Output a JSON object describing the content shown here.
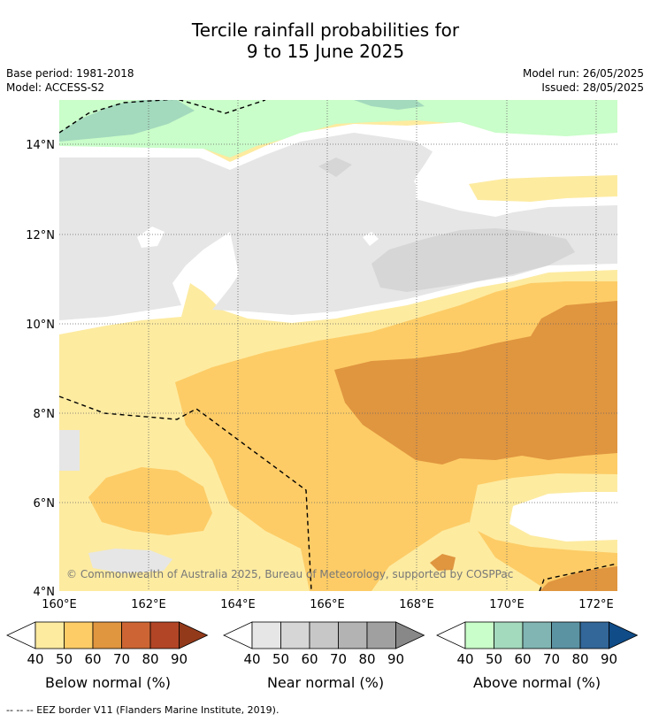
{
  "title": {
    "line1": "Tercile rainfall probabilities for",
    "line2": "9 to 15 June 2025"
  },
  "meta": {
    "base_period": "Base period: 1981-2018",
    "model": "Model: ACCESS-S2",
    "model_run": "Model run: 26/05/2025",
    "issued": "Issued: 28/05/2025"
  },
  "map": {
    "lon_labels": [
      "160°E",
      "162°E",
      "164°E",
      "166°E",
      "168°E",
      "170°E",
      "172°E"
    ],
    "lat_labels": [
      "14°N",
      "12°N",
      "10°N",
      "8°N",
      "6°N",
      "4°N"
    ],
    "copyright": "© Commonwealth of Australia 2025, Bureau of Meteorology, supported by COSPPac"
  },
  "legends": [
    {
      "title": "Below normal (%)",
      "ticks": [
        "40",
        "50",
        "60",
        "70",
        "80",
        "90"
      ],
      "colors": [
        "#fdeba0",
        "#fdcc66",
        "#e0953f",
        "#cc6533",
        "#b24526",
        "#933a1b"
      ]
    },
    {
      "title": "Near normal (%)",
      "ticks": [
        "40",
        "50",
        "60",
        "70",
        "80",
        "90"
      ],
      "colors": [
        "#e6e6e6",
        "#d6d6d6",
        "#c7c7c7",
        "#b3b3b3",
        "#a0a0a0",
        "#888888"
      ]
    },
    {
      "title": "Above normal (%)",
      "ticks": [
        "40",
        "50",
        "60",
        "70",
        "80",
        "90"
      ],
      "colors": [
        "#c9fdc9",
        "#a3d9bd",
        "#80b5b3",
        "#5b93a3",
        "#336699",
        "#0f4c88"
      ]
    }
  ],
  "footnote": "--  --  -- EEZ border V11 (Flanders Marine Institute, 2019).",
  "colors": {
    "below_40": "#fdeba0",
    "below_50": "#fdcc66",
    "below_60": "#e0953f",
    "near_40": "#e6e6e6",
    "near_50": "#d6d6d6",
    "above_40": "#c9fdc9",
    "above_50": "#a3d9bd"
  }
}
